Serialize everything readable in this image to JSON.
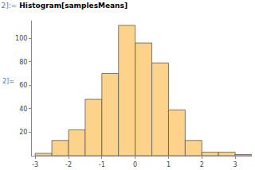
{
  "chart_data": {
    "type": "histogram",
    "title": "Histogram[samplesMeans]",
    "annotations": [
      "2]:=",
      "2]="
    ],
    "bins": [
      -3,
      -2.5,
      -2,
      -1.5,
      -1,
      -0.5,
      0,
      0.5,
      1,
      1.5,
      2,
      2.5,
      3,
      3.5
    ],
    "values": [
      2,
      13,
      22,
      48,
      70,
      111,
      96,
      79,
      39,
      13,
      3,
      3,
      1
    ],
    "color": "#fdd28a",
    "xlim": [
      -3.1,
      3.5
    ],
    "xticks": [
      -3,
      -2,
      -1,
      0,
      1,
      2,
      3
    ],
    "ylim": [
      0,
      115
    ],
    "yticks": [
      20,
      40,
      60,
      80,
      100
    ],
    "grid": false
  }
}
